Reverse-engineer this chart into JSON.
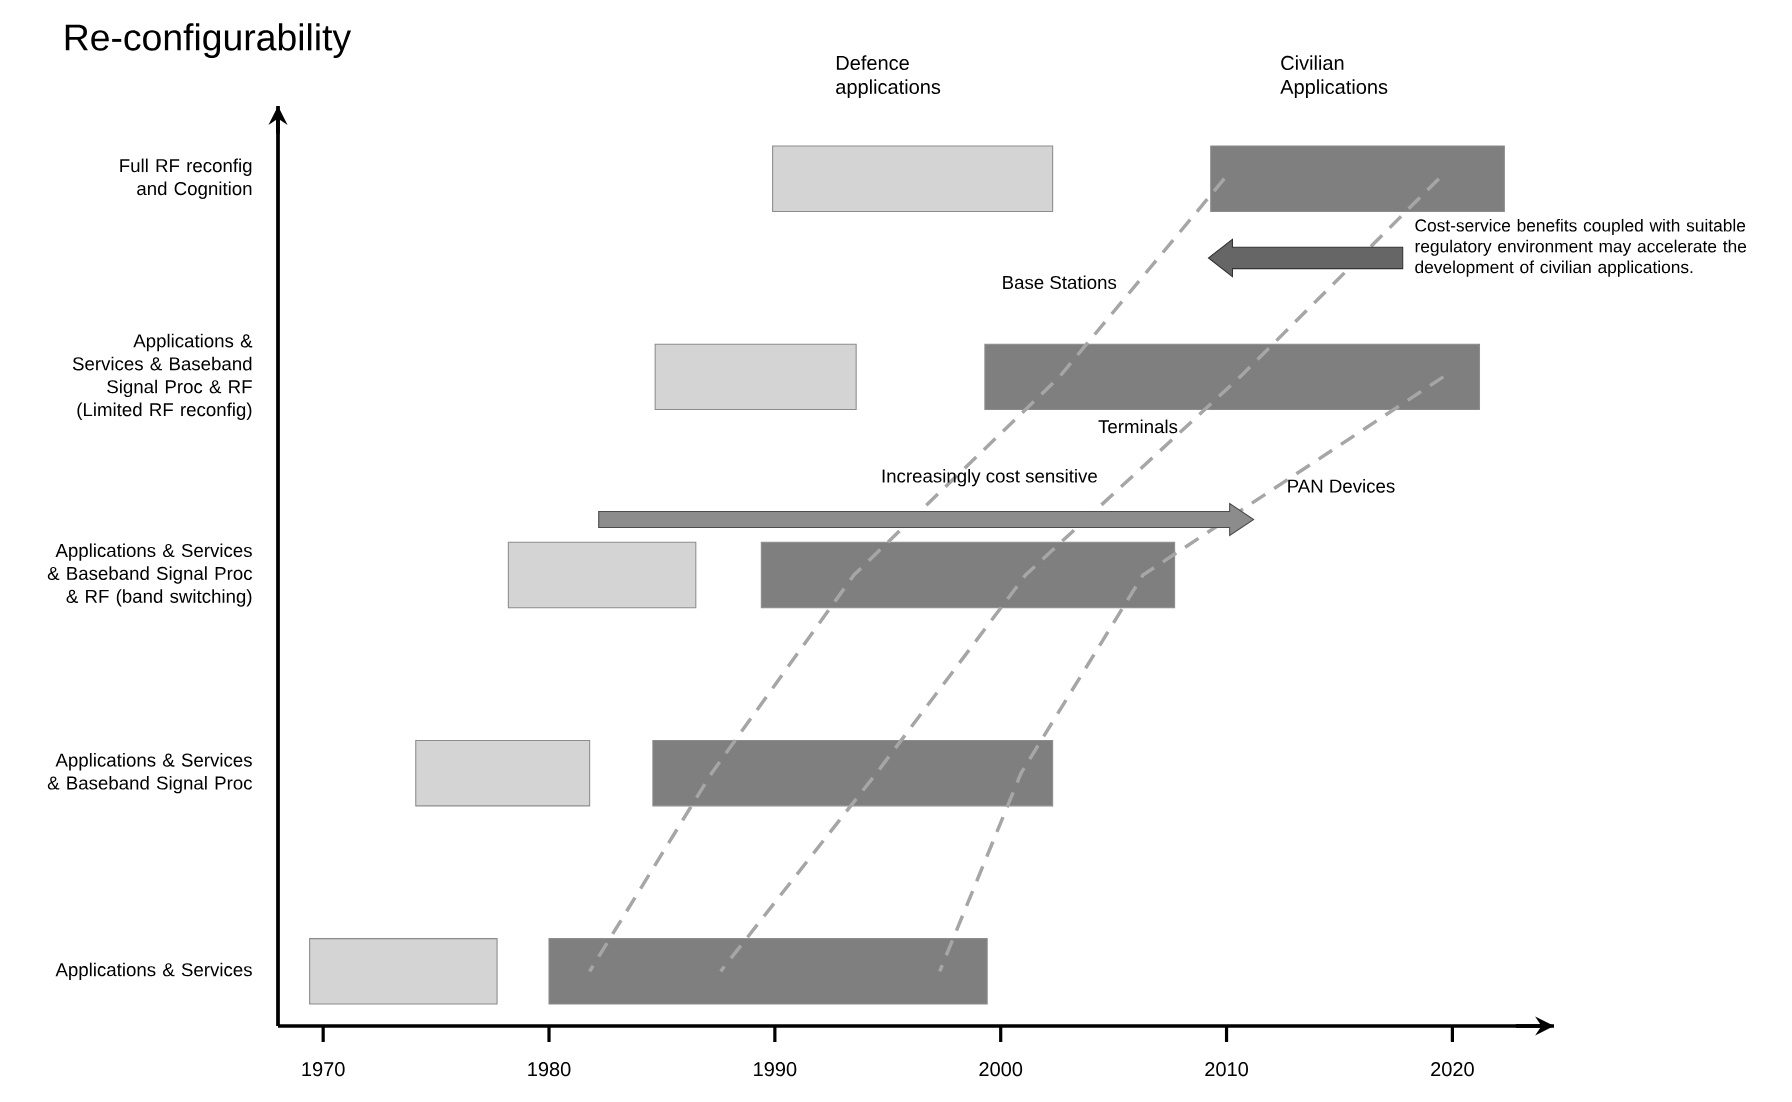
{
  "chart_data": {
    "type": "bar",
    "orientation": "horizontal",
    "ylabel": "Re-configurability",
    "categories": [
      "Full RF reconfig and Cognition",
      "Applications & Services & Baseband Signal Proc & RF (Limited RF reconfig)",
      "Applications & Services & Baseband Signal Proc & RF (band switching)",
      "Applications & Services & Baseband Signal Proc",
      "Applications & Services"
    ],
    "series": [
      {
        "name": "Defence applications",
        "color": "#d4d4d4",
        "base": [
          1989.9,
          1984.7,
          1978.2,
          1974.1,
          1969.4
        ],
        "values": [
          12.4,
          8.9,
          8.3,
          7.7,
          8.3
        ]
      },
      {
        "name": "Civilian Applications",
        "color": "#7f7f7f",
        "base": [
          2009.3,
          1999.3,
          1989.4,
          1984.6,
          1980.0
        ],
        "values": [
          13.0,
          21.9,
          18.3,
          17.7,
          19.4
        ]
      },
      {
        "name": "Base Stations",
        "type": "line",
        "line_style": "dashed",
        "color": "#a6a6a6",
        "values": [
          2009.9,
          2002.6,
          1993.5,
          1987.2,
          1981.8
        ]
      },
      {
        "name": "Terminals",
        "type": "line",
        "line_style": "dashed",
        "color": "#a6a6a6",
        "values": [
          2019.4,
          2010.6,
          2001.1,
          1994.5,
          1987.6
        ]
      },
      {
        "name": "PAN Devices",
        "type": "line",
        "line_style": "dashed",
        "color": "#a6a6a6",
        "values": [
          null,
          2019.6,
          2006.3,
          2000.9,
          1997.3
        ]
      }
    ],
    "xlim": [
      1968,
      2024.5
    ],
    "xticks": [
      1970,
      1980,
      1990,
      2000,
      2010,
      2020
    ],
    "annotations": [
      "Increasingly cost sensitive",
      "Cost-service benefits coupled with suitable regulatory environment may accelerate the development of civilian applications."
    ],
    "legend": false,
    "grid": false
  }
}
